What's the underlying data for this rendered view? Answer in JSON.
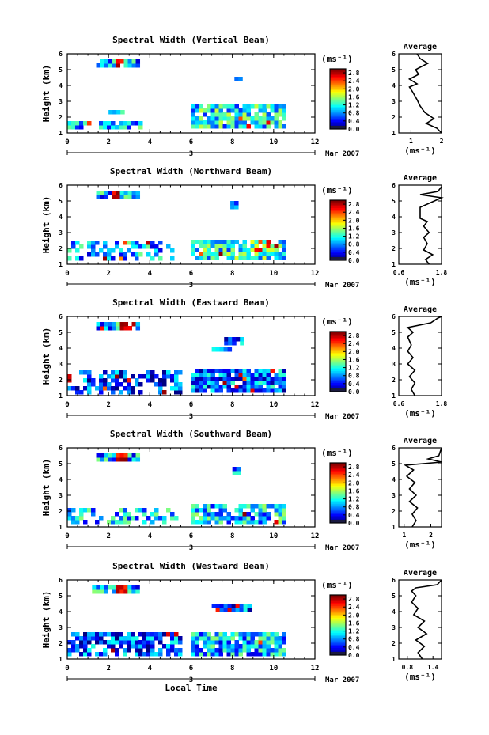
{
  "chart_data": [
    {
      "type": "heatmap",
      "title": "Spectral Width (Vertical Beam)",
      "ylabel": "Height (km)",
      "xlim": [
        0,
        12
      ],
      "ylim": [
        1,
        6
      ],
      "x_ticks": [
        "0",
        "2",
        "4",
        "6",
        "8",
        "10",
        "12"
      ],
      "y_ticks": [
        "1",
        "2",
        "3",
        "4",
        "5",
        "6"
      ],
      "date_label": "Mar 2007",
      "date_day": "3",
      "colorbar": {
        "unit": "(ms⁻¹)",
        "labels": [
          "2.8",
          "2.4",
          "2.0",
          "1.6",
          "1.2",
          "0.8",
          "0.4",
          "0.0"
        ],
        "range": [
          0,
          3.0
        ]
      },
      "blobs": [
        {
          "x0": 1.4,
          "x1": 3.5,
          "y0": 5.15,
          "y1": 5.55,
          "v": 0.9,
          "hot": [
            2.3,
            2.7
          ]
        },
        {
          "x0": 8.1,
          "x1": 8.3,
          "y0": 4.3,
          "y1": 4.5,
          "v": 0.8
        },
        {
          "x0": 2.0,
          "x1": 2.6,
          "y0": 2.2,
          "y1": 2.45,
          "v": 0.8
        },
        {
          "x0": 0.0,
          "x1": 3.6,
          "y0": 1.25,
          "y1": 1.75,
          "v": 0.9,
          "density": 0.7
        },
        {
          "x0": 6.0,
          "x1": 10.6,
          "y0": 1.3,
          "y1": 2.6,
          "v": 1.1,
          "density": 0.85
        }
      ],
      "avg": {
        "xlim": [
          0.6,
          2.0
        ],
        "x_ticks": [
          "1",
          "2"
        ],
        "x_tick_values": [
          1,
          2
        ],
        "xlabel": "(ms⁻¹)",
        "title": "Average",
        "profile": [
          [
            2.0,
            1.0
          ],
          [
            1.85,
            1.3
          ],
          [
            1.5,
            1.6
          ],
          [
            1.75,
            1.9
          ],
          [
            1.45,
            2.3
          ],
          [
            1.3,
            2.7
          ],
          [
            1.2,
            3.1
          ],
          [
            1.05,
            3.6
          ],
          [
            0.95,
            3.9
          ],
          [
            1.2,
            4.1
          ],
          [
            0.95,
            4.4
          ],
          [
            1.25,
            4.7
          ],
          [
            1.15,
            5.0
          ],
          [
            1.55,
            5.4
          ],
          [
            1.3,
            5.7
          ],
          [
            1.2,
            6.0
          ]
        ]
      }
    },
    {
      "type": "heatmap",
      "title": "Spectral Width (Northward Beam)",
      "ylabel": "Height (km)",
      "xlim": [
        0,
        12
      ],
      "ylim": [
        1,
        6
      ],
      "x_ticks": [
        "0",
        "2",
        "4",
        "6",
        "8",
        "10",
        "12"
      ],
      "y_ticks": [
        "1",
        "2",
        "3",
        "4",
        "5",
        "6"
      ],
      "date_label": "Mar 2007",
      "date_day": "3",
      "colorbar": {
        "unit": "(ms⁻¹)",
        "labels": [
          "2.8",
          "2.4",
          "2.0",
          "1.6",
          "1.2",
          "0.8",
          "0.4",
          "0.0"
        ],
        "range": [
          0,
          3.0
        ]
      },
      "blobs": [
        {
          "x0": 1.4,
          "x1": 3.5,
          "y0": 5.15,
          "y1": 5.55,
          "v": 0.9,
          "hot": [
            2.1,
            2.5
          ]
        },
        {
          "x0": 7.9,
          "x1": 8.2,
          "y0": 4.5,
          "y1": 4.8,
          "v": 0.6
        },
        {
          "x0": 0.0,
          "x1": 5.0,
          "y0": 1.25,
          "y1": 2.3,
          "v": 0.9,
          "density": 0.45
        },
        {
          "x0": 6.0,
          "x1": 10.6,
          "y0": 1.3,
          "y1": 2.5,
          "v": 1.2,
          "density": 0.85
        }
      ],
      "avg": {
        "xlim": [
          0.6,
          1.8
        ],
        "x_ticks": [
          "0.6",
          "1.8"
        ],
        "x_tick_values": [
          0.6,
          1.8
        ],
        "xlabel": "(ms⁻¹)",
        "title": "Average",
        "profile": [
          [
            1.45,
            1.0
          ],
          [
            1.35,
            1.3
          ],
          [
            1.55,
            1.6
          ],
          [
            1.3,
            1.9
          ],
          [
            1.4,
            2.3
          ],
          [
            1.3,
            2.7
          ],
          [
            1.45,
            3.0
          ],
          [
            1.3,
            3.4
          ],
          [
            1.4,
            3.7
          ],
          [
            1.2,
            3.9
          ],
          [
            1.2,
            4.6
          ],
          [
            1.6,
            5.0
          ],
          [
            1.8,
            5.2
          ],
          [
            1.2,
            5.4
          ],
          [
            1.7,
            5.6
          ],
          [
            1.8,
            5.9
          ]
        ]
      }
    },
    {
      "type": "heatmap",
      "title": "Spectral Width (Eastward Beam)",
      "ylabel": "Height (km)",
      "xlim": [
        0,
        12
      ],
      "ylim": [
        1,
        6
      ],
      "x_ticks": [
        "0",
        "2",
        "4",
        "6",
        "8",
        "10",
        "12"
      ],
      "y_ticks": [
        "1",
        "2",
        "3",
        "4",
        "5",
        "6"
      ],
      "date_label": "Mar 2007",
      "date_day": "3",
      "colorbar": {
        "unit": "(ms⁻¹)",
        "labels": [
          "2.8",
          "2.4",
          "2.0",
          "1.6",
          "1.2",
          "0.8",
          "0.4",
          "0.0"
        ],
        "range": [
          0,
          3.0
        ]
      },
      "blobs": [
        {
          "x0": 1.4,
          "x1": 3.5,
          "y0": 5.15,
          "y1": 5.55,
          "v": 0.9,
          "hot": [
            2.4,
            3.2
          ]
        },
        {
          "x0": 7.6,
          "x1": 8.5,
          "y0": 4.2,
          "y1": 4.6,
          "v": 0.6
        },
        {
          "x0": 7.0,
          "x1": 7.8,
          "y0": 3.8,
          "y1": 4.0,
          "v": 0.6
        },
        {
          "x0": 0.0,
          "x1": 5.5,
          "y0": 1.1,
          "y1": 2.4,
          "v": 0.5,
          "density": 0.6
        },
        {
          "x0": 6.0,
          "x1": 10.6,
          "y0": 1.2,
          "y1": 2.6,
          "v": 0.7,
          "density": 0.9
        }
      ],
      "avg": {
        "xlim": [
          0.6,
          1.8
        ],
        "x_ticks": [
          "0.6",
          "1.8"
        ],
        "x_tick_values": [
          0.6,
          1.8
        ],
        "xlabel": "(ms⁻¹)",
        "title": "Average",
        "profile": [
          [
            1.05,
            1.0
          ],
          [
            0.95,
            1.4
          ],
          [
            1.05,
            1.8
          ],
          [
            0.9,
            2.2
          ],
          [
            1.05,
            2.6
          ],
          [
            0.85,
            3.0
          ],
          [
            1.0,
            3.4
          ],
          [
            0.85,
            3.8
          ],
          [
            0.95,
            4.2
          ],
          [
            0.85,
            4.7
          ],
          [
            1.0,
            5.0
          ],
          [
            0.85,
            5.3
          ],
          [
            1.5,
            5.6
          ],
          [
            1.7,
            5.9
          ],
          [
            1.8,
            6.0
          ]
        ]
      }
    },
    {
      "type": "heatmap",
      "title": "Spectral Width (Southward Beam)",
      "ylabel": "Height (km)",
      "xlim": [
        0,
        12
      ],
      "ylim": [
        1,
        6
      ],
      "x_ticks": [
        "0",
        "2",
        "4",
        "6",
        "8",
        "10",
        "12"
      ],
      "y_ticks": [
        "1",
        "2",
        "3",
        "4",
        "5",
        "6"
      ],
      "date_label": "Mar 2007",
      "date_day": "3",
      "colorbar": {
        "unit": "(ms⁻¹)",
        "labels": [
          "2.8",
          "2.4",
          "2.0",
          "1.6",
          "1.2",
          "0.8",
          "0.4",
          "0.0"
        ],
        "range": [
          0,
          3.0
        ]
      },
      "blobs": [
        {
          "x0": 1.4,
          "x1": 3.5,
          "y0": 5.15,
          "y1": 5.55,
          "v": 0.9,
          "hot": [
            2.2,
            2.8
          ]
        },
        {
          "x0": 8.0,
          "x1": 8.3,
          "y0": 4.3,
          "y1": 4.6,
          "v": 0.7
        },
        {
          "x0": 0.0,
          "x1": 5.2,
          "y0": 1.2,
          "y1": 2.2,
          "v": 0.9,
          "density": 0.45
        },
        {
          "x0": 6.0,
          "x1": 10.6,
          "y0": 1.2,
          "y1": 2.4,
          "v": 1.0,
          "density": 0.85
        }
      ],
      "avg": {
        "xlim": [
          0.8,
          2.4
        ],
        "x_ticks": [
          "1",
          "2"
        ],
        "x_tick_values": [
          1,
          2
        ],
        "xlabel": "(ms⁻¹)",
        "title": "Average",
        "profile": [
          [
            1.3,
            1.0
          ],
          [
            1.45,
            1.4
          ],
          [
            1.3,
            1.8
          ],
          [
            1.5,
            2.2
          ],
          [
            1.2,
            2.6
          ],
          [
            1.45,
            3.0
          ],
          [
            1.2,
            3.4
          ],
          [
            1.4,
            3.8
          ],
          [
            1.1,
            4.2
          ],
          [
            1.35,
            4.6
          ],
          [
            1.05,
            4.9
          ],
          [
            2.4,
            5.1
          ],
          [
            1.9,
            5.3
          ],
          [
            2.3,
            5.5
          ],
          [
            2.4,
            6.0
          ]
        ]
      }
    },
    {
      "type": "heatmap",
      "title": "Spectral Width (Westward Beam)",
      "ylabel": "Height (km)",
      "xlabel": "Local Time",
      "xlim": [
        0,
        12
      ],
      "ylim": [
        1,
        6
      ],
      "x_ticks": [
        "0",
        "2",
        "4",
        "6",
        "8",
        "10",
        "12"
      ],
      "y_ticks": [
        "1",
        "2",
        "3",
        "4",
        "5",
        "6"
      ],
      "date_label": "Mar 2007",
      "date_day": "3",
      "colorbar": {
        "unit": "(ms⁻¹)",
        "labels": [
          "2.8",
          "2.4",
          "2.0",
          "1.6",
          "1.2",
          "0.8",
          "0.4",
          "0.0"
        ],
        "range": [
          0,
          3.0
        ]
      },
      "blobs": [
        {
          "x0": 1.2,
          "x1": 3.5,
          "y0": 5.15,
          "y1": 5.6,
          "v": 0.9,
          "hot": [
            2.2,
            2.8
          ]
        },
        {
          "x0": 7.0,
          "x1": 8.8,
          "y0": 4.0,
          "y1": 4.4,
          "v": 0.6
        },
        {
          "x0": 0.0,
          "x1": 5.5,
          "y0": 1.2,
          "y1": 2.6,
          "v": 0.6,
          "density": 0.7
        },
        {
          "x0": 6.0,
          "x1": 10.6,
          "y0": 1.2,
          "y1": 2.7,
          "v": 0.9,
          "density": 0.9
        }
      ],
      "avg": {
        "xlim": [
          0.6,
          1.6
        ],
        "x_ticks": [
          "0.8",
          "1.4"
        ],
        "x_tick_values": [
          0.8,
          1.4
        ],
        "xlabel": "(ms⁻¹)",
        "title": "Average",
        "profile": [
          [
            1.15,
            1.0
          ],
          [
            1.05,
            1.4
          ],
          [
            1.2,
            1.8
          ],
          [
            1.0,
            2.2
          ],
          [
            1.25,
            2.6
          ],
          [
            1.05,
            3.0
          ],
          [
            1.2,
            3.4
          ],
          [
            0.95,
            3.8
          ],
          [
            1.05,
            4.2
          ],
          [
            0.9,
            4.6
          ],
          [
            1.0,
            5.0
          ],
          [
            0.9,
            5.3
          ],
          [
            1.0,
            5.5
          ],
          [
            1.5,
            5.7
          ],
          [
            1.6,
            6.0
          ]
        ]
      }
    }
  ]
}
